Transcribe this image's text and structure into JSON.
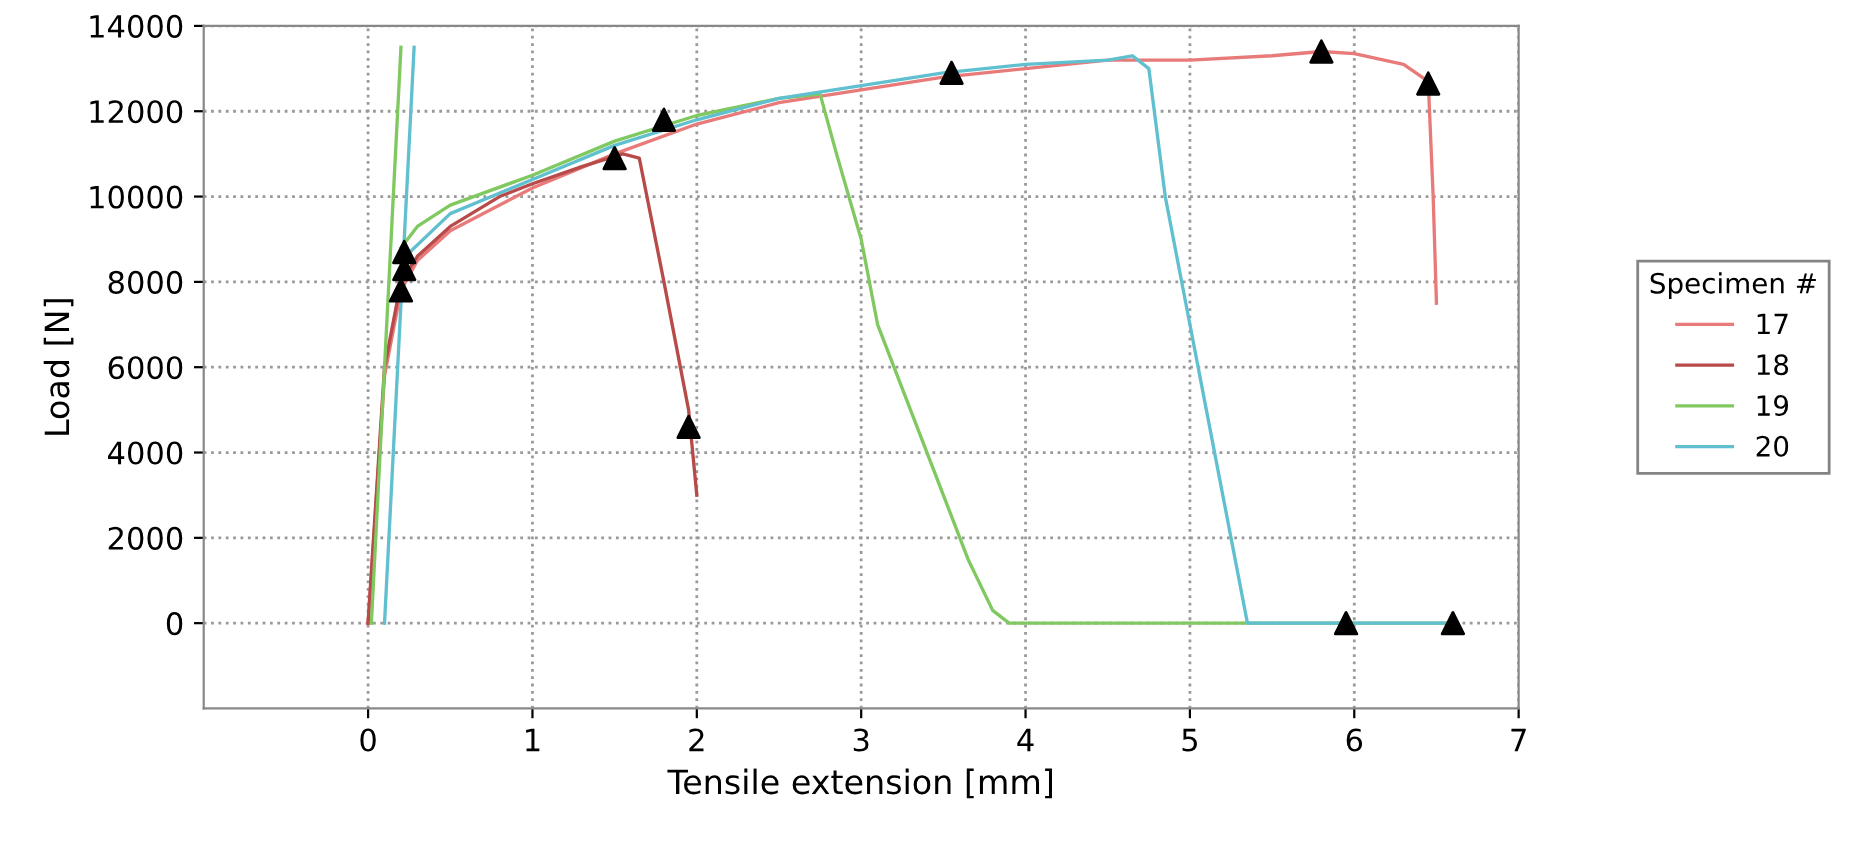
{
  "chart_data": {
    "type": "line",
    "xlabel": "Tensile extension [mm]",
    "ylabel": "Load [N]",
    "legend_title": "Specimen #",
    "xlim": [
      -1,
      7
    ],
    "xticks": [
      0,
      1,
      2,
      3,
      4,
      5,
      6,
      7
    ],
    "ylim": [
      -2000,
      14000
    ],
    "yticks": [
      0,
      2000,
      4000,
      6000,
      8000,
      10000,
      12000,
      14000
    ],
    "grid": true,
    "legend": "right",
    "marker": "none",
    "line_style": "solid",
    "series": [
      {
        "name": "17",
        "color": "#e87a7a",
        "x": [
          0,
          0.1,
          0.2,
          0.3,
          0.5,
          1,
          1.5,
          2,
          2.5,
          3,
          3.5,
          4,
          4.5,
          5,
          5.5,
          5.8,
          6,
          6.3,
          6.45,
          6.48,
          6.5
        ],
        "values": [
          0,
          5800,
          7800,
          8500,
          9200,
          10200,
          11000,
          11700,
          12200,
          12500,
          12800,
          13000,
          13200,
          13200,
          13300,
          13400,
          13350,
          13100,
          12700,
          10000,
          7500
        ]
      },
      {
        "name": "18",
        "color": "#b84a4a",
        "x": [
          0,
          0.1,
          0.2,
          0.3,
          0.5,
          0.8,
          1.0,
          1.3,
          1.55,
          1.65,
          1.8,
          1.95,
          2.0
        ],
        "values": [
          0,
          6000,
          8000,
          8600,
          9300,
          10000,
          10300,
          10700,
          11000,
          10900,
          8000,
          5000,
          3000
        ]
      },
      {
        "name": "19",
        "color": "#80c860",
        "x": [
          0.2,
          0.3,
          0.5,
          1,
          1.5,
          2,
          2.5,
          2.75,
          2.85,
          3.0,
          3.1,
          3.3,
          3.5,
          3.65,
          3.8,
          3.9,
          5,
          6.6
        ],
        "values": [
          8800,
          9300,
          9800,
          10500,
          11300,
          11900,
          12300,
          12400,
          11000,
          9000,
          7000,
          5000,
          3000,
          1500,
          300,
          0,
          0,
          0
        ]
      },
      {
        "name": "20",
        "color": "#60c0d0",
        "x": [
          0.2,
          0.5,
          1,
          1.5,
          2,
          2.5,
          3,
          3.5,
          4,
          4.5,
          4.65,
          4.75,
          4.85,
          5.0,
          5.1,
          5.25,
          5.35,
          6.6
        ],
        "values": [
          8500,
          9600,
          10400,
          11200,
          11800,
          12300,
          12600,
          12900,
          13100,
          13200,
          13300,
          13000,
          10000,
          7000,
          5000,
          2000,
          0,
          0
        ]
      },
      {
        "color": "#80c860",
        "x": [
          0.02,
          0.2
        ],
        "values": [
          0,
          13500
        ]
      },
      {
        "color": "#60c0d0",
        "x": [
          0.1,
          0.28
        ],
        "values": [
          0,
          13500
        ]
      },
      {
        "type": "scatter",
        "marker": "triangle",
        "color": "#000000",
        "x": [
          0.2,
          0.22,
          0.22,
          1.5,
          1.8,
          1.95,
          3.55,
          5.8,
          5.95,
          6.45,
          6.6
        ],
        "values": [
          7800,
          8300,
          8700,
          10900,
          11800,
          4600,
          12900,
          13400,
          0,
          12650,
          0
        ]
      }
    ]
  }
}
